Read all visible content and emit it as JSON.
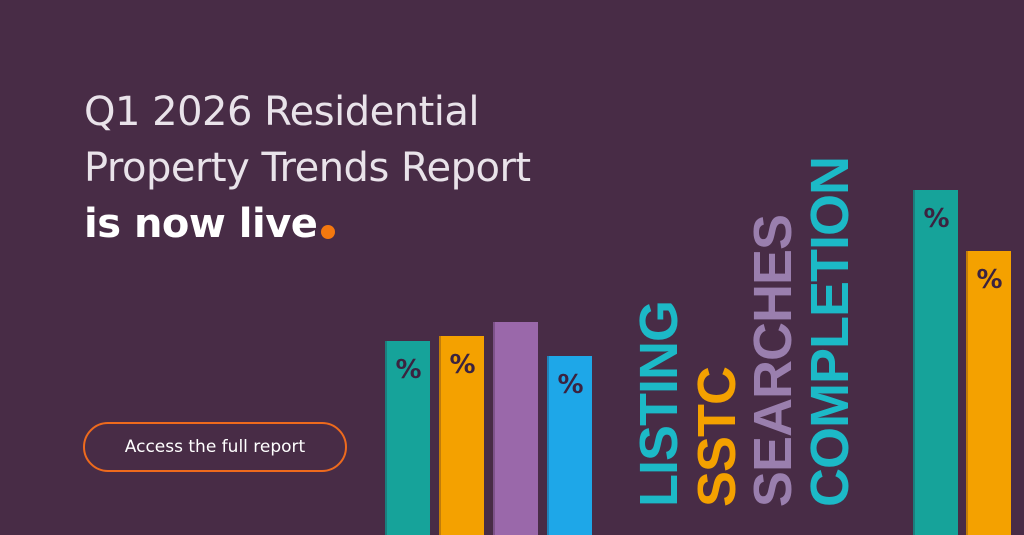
{
  "headline": {
    "line1": "Q1 2026 Residential",
    "line2": "Property Trends Report",
    "line3": "is now live"
  },
  "cta": {
    "label": "Access the full report"
  },
  "bars_left": [
    {
      "color": "#16a39a",
      "label": "%"
    },
    {
      "color": "#f4a100",
      "label": "%"
    },
    {
      "color": "#9a68aa",
      "label": ""
    },
    {
      "color": "#1ea7e8",
      "label": "%"
    }
  ],
  "bars_right": [
    {
      "color": "#16a39a",
      "label": "%"
    },
    {
      "color": "#f4a100",
      "label": "%"
    }
  ],
  "stages": [
    {
      "word": "LISTING",
      "color": "#1cb9c7"
    },
    {
      "word": "SSTC",
      "color": "#f4a100"
    },
    {
      "word": "SEARCHES",
      "color": "#9a7fae"
    },
    {
      "word": "COMPLETION",
      "color": "#1cb9c7"
    }
  ],
  "colors": {
    "background": "#482c46",
    "accent_dot": "#f4780f",
    "cta_border": "#ee6a1d"
  }
}
